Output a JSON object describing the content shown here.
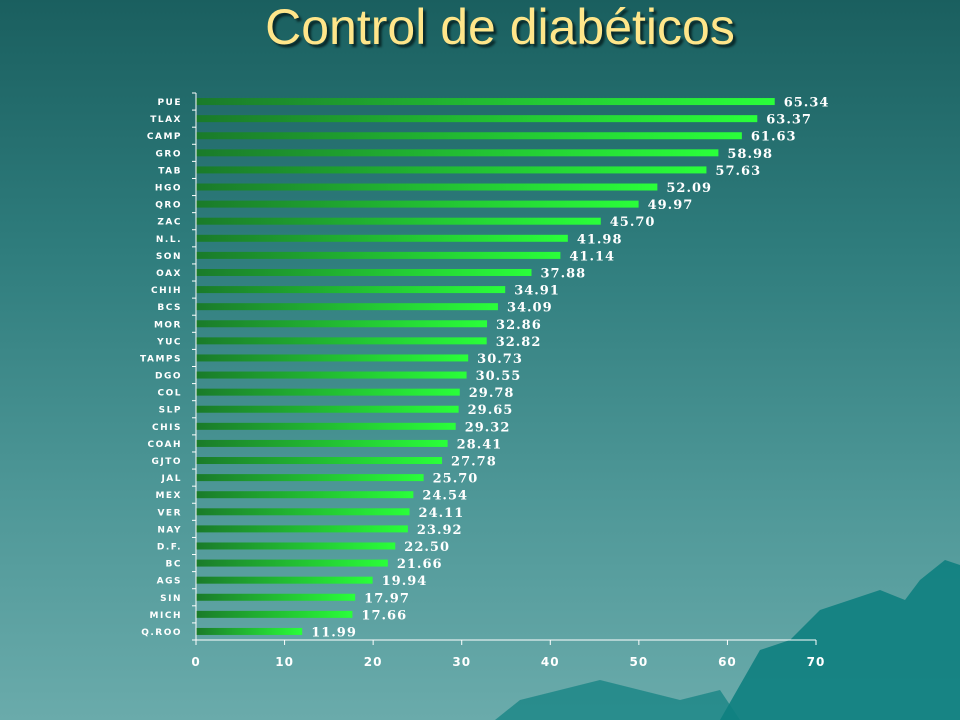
{
  "slide": {
    "title": "Control de diabéticos"
  },
  "colors": {
    "bar_start": "#1a7a2a",
    "bar_end": "#2aff3a",
    "axis": "#ffffff",
    "title": "#ffe68a",
    "mountain": "#0e8080"
  },
  "chart_data": {
    "type": "bar",
    "orientation": "horizontal",
    "title": "",
    "xlabel": "",
    "ylabel": "",
    "xlim": [
      0,
      70
    ],
    "x_ticks": [
      "0",
      "10",
      "20",
      "30",
      "40",
      "50",
      "60",
      "70"
    ],
    "grid": false,
    "legend": "none",
    "categories": [
      "PUE",
      "TLAX",
      "CAMP",
      "GRO",
      "TAB",
      "HGO",
      "QRO",
      "ZAC",
      "N.L.",
      "SON",
      "OAX",
      "CHIH",
      "BCS",
      "MOR",
      "YUC",
      "TAMPS",
      "DGO",
      "COL",
      "SLP",
      "CHIS",
      "COAH",
      "GJTO",
      "JAL",
      "MEX",
      "VER",
      "NAY",
      "D.F.",
      "BC",
      "AGS",
      "SIN",
      "MICH",
      "Q.ROO"
    ],
    "values": [
      65.34,
      63.37,
      61.63,
      58.98,
      57.63,
      52.09,
      49.97,
      45.7,
      41.98,
      41.14,
      37.88,
      34.91,
      34.09,
      32.86,
      32.82,
      30.73,
      30.55,
      29.78,
      29.65,
      29.32,
      28.41,
      27.78,
      25.7,
      24.54,
      24.11,
      23.92,
      22.5,
      21.66,
      19.94,
      17.97,
      17.66,
      11.99
    ],
    "value_labels": [
      "65.34",
      "63.37",
      "61.63",
      "58.98",
      "57.63",
      "52.09",
      "49.97",
      "45.70",
      "41.98",
      "41.14",
      "37.88",
      "34.91",
      "34.09",
      "32.86",
      "32.82",
      "30.73",
      "30.55",
      "29.78",
      "29.65",
      "29.32",
      "28.41",
      "27.78",
      "25.70",
      "24.54",
      "24.11",
      "23.92",
      "22.50",
      "21.66",
      "19.94",
      "17.97",
      "17.66",
      "11.99"
    ]
  }
}
